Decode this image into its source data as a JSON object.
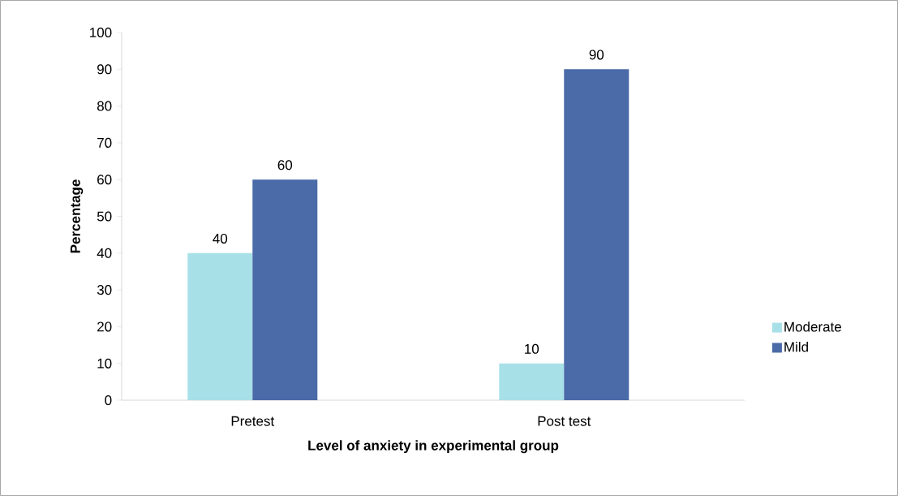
{
  "chart_data": {
    "type": "bar",
    "xlabel": "Level of anxiety in experimental group",
    "ylabel": "Percentage",
    "categories": [
      "Pretest",
      "Post test"
    ],
    "series": [
      {
        "name": "Moderate",
        "color": "#a8e0e8",
        "values": [
          40,
          10
        ]
      },
      {
        "name": "Mild",
        "color": "#4a6aa8",
        "values": [
          60,
          90
        ]
      }
    ],
    "ylim": [
      0,
      100
    ],
    "yticks": [
      0,
      10,
      20,
      30,
      40,
      50,
      60,
      70,
      80,
      90,
      100
    ],
    "data_labels": true,
    "legend": "right"
  }
}
